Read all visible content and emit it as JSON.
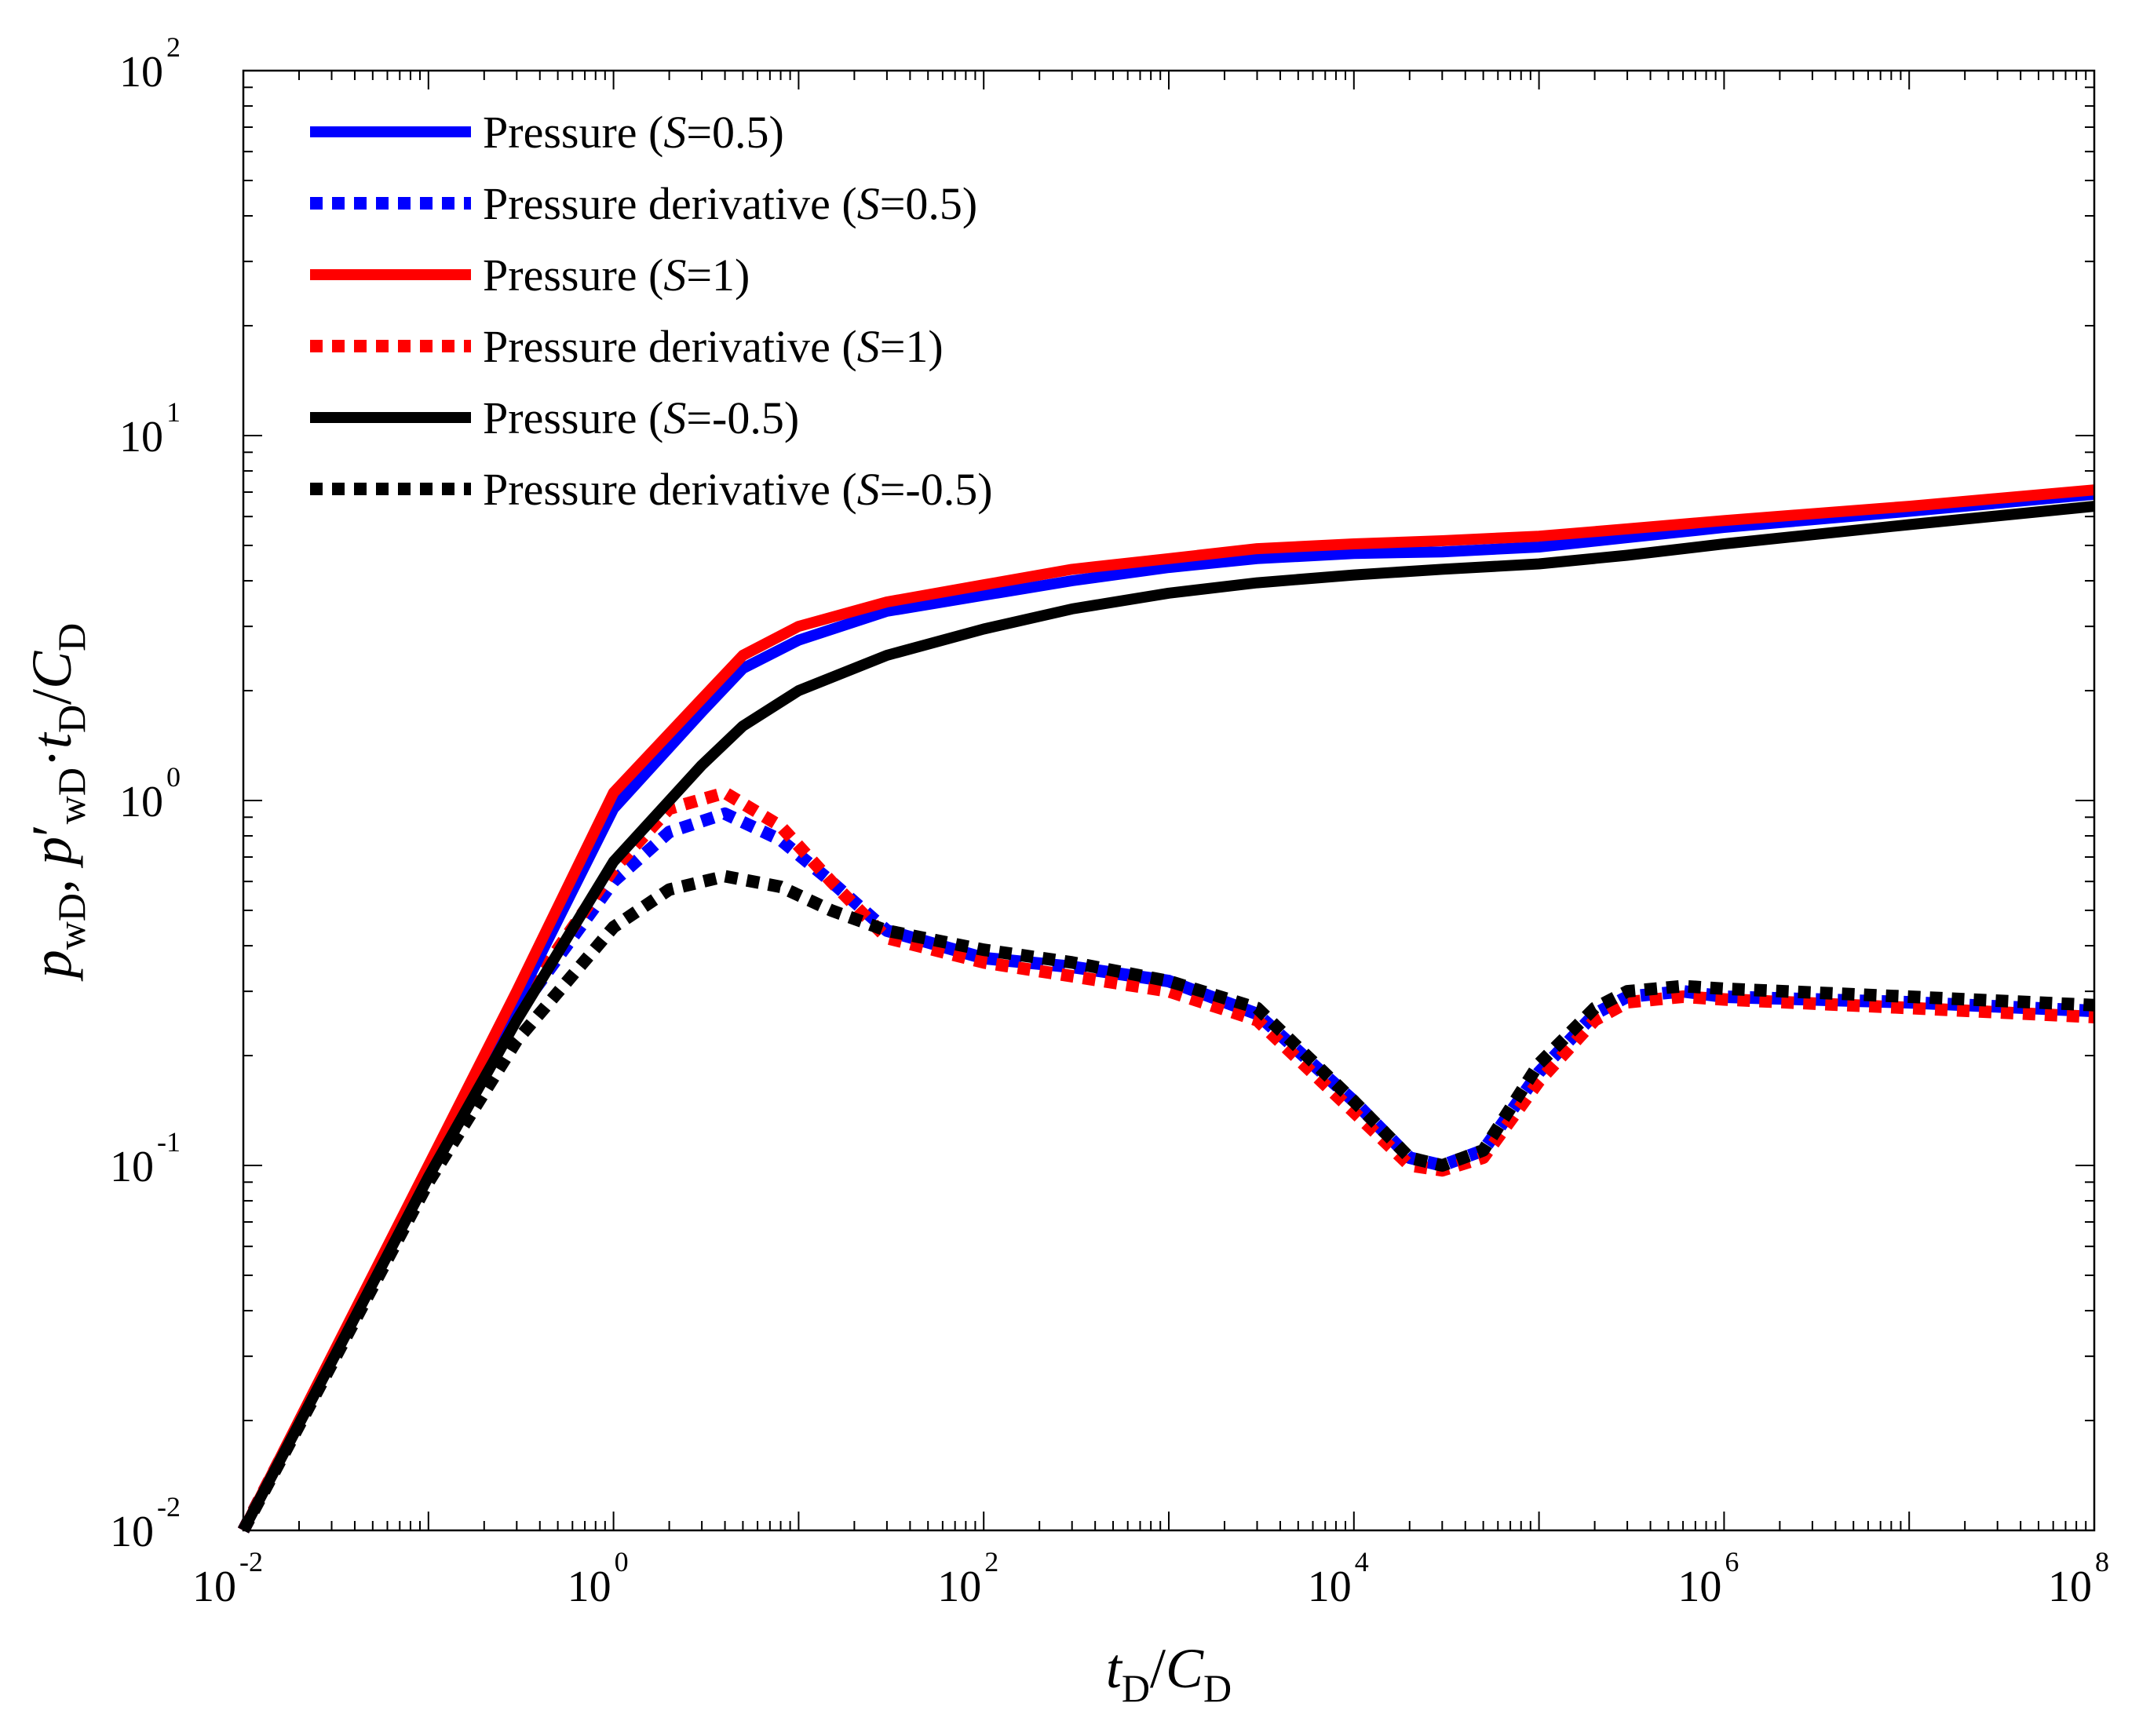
{
  "chart_data": {
    "type": "line",
    "title": "",
    "xscale": "log",
    "yscale": "log",
    "xlim": [
      0.01,
      100000000
    ],
    "ylim": [
      0.01,
      100
    ],
    "xlabel": {
      "main": "t",
      "sub": "D",
      "sep": "/",
      "main2": "C",
      "sub2": "D"
    },
    "ylabel": {
      "parts": [
        {
          "text": "p",
          "italic": true
        },
        {
          "text": "wD",
          "sub": true
        },
        {
          "text": ", ",
          "italic": false
        },
        {
          "text": "p",
          "italic": true
        },
        {
          "text": "′",
          "italic": false
        },
        {
          "text": "wD",
          "sub": true
        },
        {
          "text": "·",
          "italic": false
        },
        {
          "text": "t",
          "italic": true
        },
        {
          "text": "D",
          "sub": true
        },
        {
          "text": "/",
          "italic": false
        },
        {
          "text": "C",
          "italic": true
        },
        {
          "text": "D",
          "sub": true
        }
      ]
    },
    "x_ticks": [
      {
        "base": "10",
        "exp": "-2",
        "value": 0.01
      },
      {
        "base": "10",
        "exp": "0",
        "value": 1
      },
      {
        "base": "10",
        "exp": "2",
        "value": 100
      },
      {
        "base": "10",
        "exp": "4",
        "value": 10000
      },
      {
        "base": "10",
        "exp": "6",
        "value": 1000000
      },
      {
        "base": "10",
        "exp": "8",
        "value": 100000000
      }
    ],
    "y_ticks": [
      {
        "base": "10",
        "exp": "-2",
        "value": 0.01
      },
      {
        "base": "10",
        "exp": "-1",
        "value": 0.1
      },
      {
        "base": "10",
        "exp": "0",
        "value": 1
      },
      {
        "base": "10",
        "exp": "1",
        "value": 10
      },
      {
        "base": "10",
        "exp": "2",
        "value": 100
      }
    ],
    "legend_position": "top-left",
    "series": [
      {
        "name": "Pressure (S=0.5)",
        "label": {
          "pre": "Pressure (",
          "var": "S",
          "post": "=0.5)"
        },
        "color": "#0000ff",
        "style": "solid",
        "x": [
          0.01,
          0.1,
          0.3,
          1,
          3,
          5,
          10,
          30,
          100,
          300,
          1000,
          3000,
          10000,
          30000,
          100000,
          300000,
          1000000,
          10000000,
          100000000
        ],
        "y": [
          0.01,
          0.097,
          0.28,
          0.95,
          1.75,
          2.3,
          2.75,
          3.3,
          3.65,
          4.0,
          4.35,
          4.6,
          4.75,
          4.8,
          4.95,
          5.25,
          5.6,
          6.2,
          6.9
        ]
      },
      {
        "name": "Pressure derivative (S=0.5)",
        "label": {
          "pre": "Pressure derivative (",
          "var": "S",
          "post": "=0.5)"
        },
        "color": "#0000ff",
        "style": "dotted",
        "x": [
          0.01,
          0.1,
          0.3,
          1,
          2,
          4,
          8,
          15,
          30,
          100,
          300,
          1000,
          3000,
          10000,
          20000,
          30000,
          50000,
          100000,
          200000,
          300000,
          600000,
          1000000,
          10000000,
          100000000
        ],
        "y": [
          0.01,
          0.095,
          0.26,
          0.6,
          0.82,
          0.92,
          0.78,
          0.6,
          0.44,
          0.37,
          0.35,
          0.32,
          0.26,
          0.15,
          0.105,
          0.1,
          0.11,
          0.18,
          0.26,
          0.29,
          0.3,
          0.29,
          0.28,
          0.265
        ]
      },
      {
        "name": "Pressure (S=1)",
        "label": {
          "pre": "Pressure (",
          "var": "S",
          "post": "=1)"
        },
        "color": "#ff0000",
        "style": "solid",
        "x": [
          0.01,
          0.1,
          0.3,
          1,
          3,
          5,
          10,
          30,
          100,
          300,
          1000,
          3000,
          10000,
          30000,
          100000,
          300000,
          1000000,
          10000000,
          100000000
        ],
        "y": [
          0.01,
          0.1,
          0.3,
          1.05,
          1.9,
          2.5,
          3.0,
          3.5,
          3.9,
          4.3,
          4.6,
          4.9,
          5.05,
          5.15,
          5.3,
          5.55,
          5.85,
          6.4,
          7.1
        ]
      },
      {
        "name": "Pressure derivative (S=1)",
        "label": {
          "pre": "Pressure derivative (",
          "var": "S",
          "post": "=1)"
        },
        "color": "#ff0000",
        "style": "dotted",
        "x": [
          0.01,
          0.1,
          0.3,
          1,
          2,
          4,
          8,
          15,
          30,
          100,
          300,
          1000,
          3000,
          10000,
          20000,
          30000,
          50000,
          100000,
          200000,
          300000,
          600000,
          1000000,
          10000000,
          100000000
        ],
        "y": [
          0.01,
          0.095,
          0.27,
          0.65,
          0.95,
          1.05,
          0.85,
          0.6,
          0.42,
          0.36,
          0.33,
          0.3,
          0.25,
          0.14,
          0.1,
          0.097,
          0.105,
          0.17,
          0.25,
          0.28,
          0.29,
          0.285,
          0.27,
          0.255
        ]
      },
      {
        "name": "Pressure (S=-0.5)",
        "label": {
          "pre": "Pressure (",
          "var": "S",
          "post": "=-0.5)"
        },
        "color": "#000000",
        "style": "solid",
        "x": [
          0.01,
          0.1,
          0.3,
          1,
          3,
          5,
          10,
          30,
          100,
          300,
          1000,
          3000,
          10000,
          30000,
          100000,
          300000,
          1000000,
          10000000,
          100000000
        ],
        "y": [
          0.01,
          0.093,
          0.25,
          0.68,
          1.25,
          1.6,
          2.0,
          2.5,
          2.95,
          3.35,
          3.7,
          3.95,
          4.15,
          4.3,
          4.45,
          4.7,
          5.05,
          5.7,
          6.4
        ]
      },
      {
        "name": "Pressure derivative (S=-0.5)",
        "label": {
          "pre": "Pressure derivative (",
          "var": "S",
          "post": "=-0.5)"
        },
        "color": "#000000",
        "style": "dotted",
        "x": [
          0.01,
          0.1,
          0.3,
          1,
          2,
          4,
          8,
          15,
          30,
          100,
          300,
          1000,
          3000,
          10000,
          20000,
          30000,
          50000,
          100000,
          200000,
          300000,
          600000,
          1000000,
          10000000,
          100000000
        ],
        "y": [
          0.01,
          0.09,
          0.22,
          0.45,
          0.57,
          0.62,
          0.58,
          0.5,
          0.44,
          0.39,
          0.36,
          0.32,
          0.27,
          0.15,
          0.105,
          0.1,
          0.11,
          0.19,
          0.27,
          0.3,
          0.31,
          0.305,
          0.29,
          0.275
        ]
      }
    ]
  }
}
